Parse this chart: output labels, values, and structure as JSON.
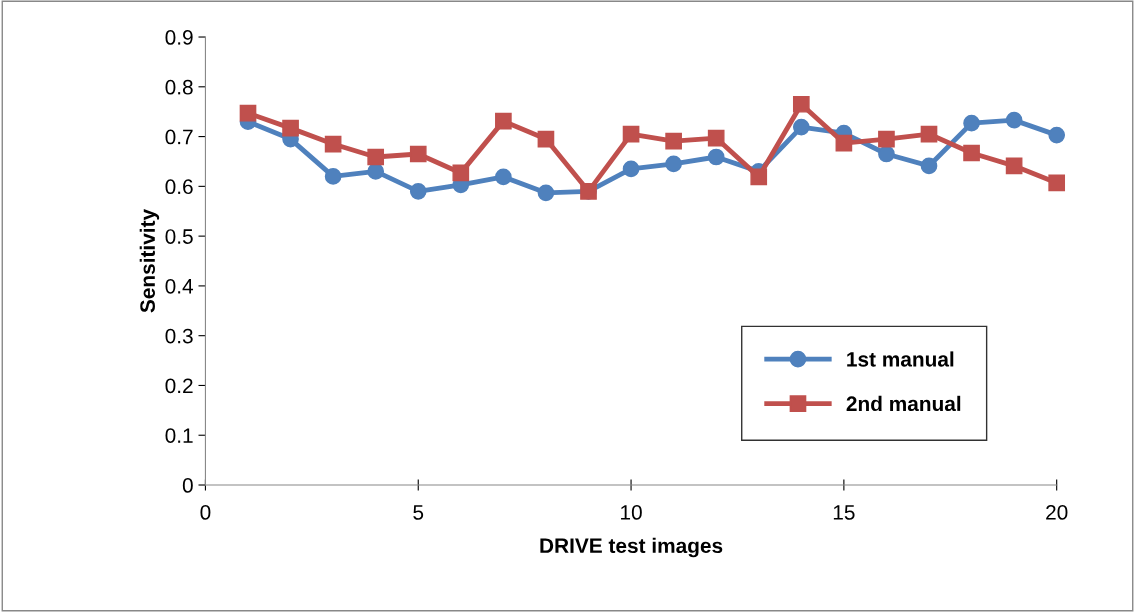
{
  "chart_data": {
    "type": "line",
    "xlabel": "DRIVE test images",
    "ylabel": "Sensitivity",
    "x": [
      1,
      2,
      3,
      4,
      5,
      6,
      7,
      8,
      9,
      10,
      11,
      12,
      13,
      14,
      15,
      16,
      17,
      18,
      19,
      20
    ],
    "series": [
      {
        "name": "1st manual",
        "color": "#4f81bd",
        "marker": "circle",
        "values": [
          0.73,
          0.695,
          0.62,
          0.63,
          0.59,
          0.603,
          0.619,
          0.587,
          0.59,
          0.635,
          0.645,
          0.659,
          0.63,
          0.719,
          0.707,
          0.665,
          0.641,
          0.727,
          0.733,
          0.703
        ]
      },
      {
        "name": "2nd manual",
        "color": "#c0504d",
        "marker": "square",
        "values": [
          0.747,
          0.717,
          0.685,
          0.659,
          0.665,
          0.627,
          0.731,
          0.695,
          0.59,
          0.705,
          0.691,
          0.697,
          0.619,
          0.765,
          0.687,
          0.695,
          0.705,
          0.667,
          0.641,
          0.607
        ]
      }
    ],
    "xlim": [
      0,
      20
    ],
    "xticks": [
      0,
      5,
      10,
      15,
      20
    ],
    "ylim": [
      0,
      0.9
    ],
    "yticks": [
      0,
      0.1,
      0.2,
      0.3,
      0.4,
      0.5,
      0.6,
      0.7,
      0.8,
      0.9
    ],
    "grid": false,
    "legend": "bottom right",
    "line_style": "solid"
  }
}
